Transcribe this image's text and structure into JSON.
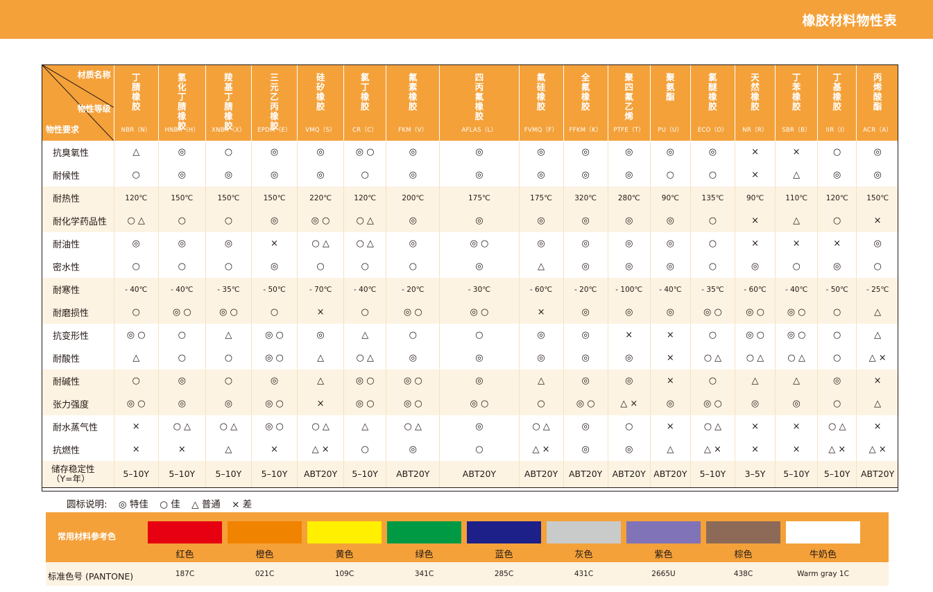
{
  "header": {
    "title": "橡胶材料物性表"
  },
  "table": {
    "corner": {
      "top": "材质名称",
      "middle": "物性等级",
      "bottom": "物性要求"
    },
    "materials": [
      {
        "name": "丁腈橡胶",
        "code": "NBR（N）"
      },
      {
        "name": "氢化丁腈橡胶",
        "code": "HNBR（H）"
      },
      {
        "name": "羧基丁腈橡胶",
        "code": "XNBR（X）"
      },
      {
        "name": "三元乙丙橡胶",
        "code": "EPDM（E）"
      },
      {
        "name": "硅矽橡胶",
        "code": "VMQ（S）"
      },
      {
        "name": "氯丁橡胶",
        "code": "CR（C）"
      },
      {
        "name": "氟素橡胶",
        "code": "FKM（V）"
      },
      {
        "name": "四丙氟橡胶",
        "code": "AFLAS（L）"
      },
      {
        "name": "氟硅橡胶",
        "code": "FVMQ（F）"
      },
      {
        "name": "全氟橡胶",
        "code": "FFKM（K）"
      },
      {
        "name": "聚四氟乙烯",
        "code": "PTFE（T）"
      },
      {
        "name": "聚氨酯",
        "code": "PU（U）"
      },
      {
        "name": "氯醚橡胶",
        "code": "ECO（O）"
      },
      {
        "name": "天然橡胶",
        "code": "NR（R）"
      },
      {
        "name": "丁苯橡胶",
        "code": "SBR（B）"
      },
      {
        "name": "丁基橡胶",
        "code": "IIR（I）"
      },
      {
        "name": "丙烯酸酯",
        "code": "ACR（A）"
      }
    ],
    "rows": [
      {
        "label": "抗臭氧性",
        "values": [
          "△",
          "◎",
          "○",
          "◎",
          "◎",
          "◎ ○",
          "◎",
          "◎",
          "◎",
          "◎",
          "◎",
          "◎",
          "◎",
          "×",
          "×",
          "○",
          "◎"
        ]
      },
      {
        "label": "耐候性",
        "values": [
          "○",
          "◎",
          "◎",
          "◎",
          "◎",
          "○",
          "◎",
          "◎",
          "◎",
          "◎",
          "◎",
          "○",
          "○",
          "×",
          "△",
          "◎",
          "◎"
        ]
      },
      {
        "label": "耐热性",
        "values": [
          "120℃",
          "150℃",
          "150℃",
          "150℃",
          "220℃",
          "120℃",
          "200℃",
          "175℃",
          "175℃",
          "320℃",
          "280℃",
          "90℃",
          "135℃",
          "90℃",
          "110℃",
          "120℃",
          "150℃"
        ]
      },
      {
        "label": "耐化学药品性",
        "values": [
          "○ △",
          "○",
          "○",
          "◎",
          "◎ ○",
          "○ △",
          "◎",
          "◎",
          "◎",
          "◎",
          "◎",
          "◎",
          "○",
          "×",
          "△",
          "○",
          "×"
        ]
      },
      {
        "label": "耐油性",
        "values": [
          "◎",
          "◎",
          "◎",
          "×",
          "○ △",
          "○ △",
          "◎",
          "◎ ○",
          "◎",
          "◎",
          "◎",
          "◎",
          "○",
          "×",
          "×",
          "×",
          "◎"
        ]
      },
      {
        "label": "密水性",
        "values": [
          "○",
          "○",
          "○",
          "◎",
          "○",
          "○",
          "○",
          "◎",
          "△",
          "◎",
          "◎",
          "◎",
          "○",
          "◎",
          "○",
          "◎",
          "○"
        ]
      },
      {
        "label": "耐寒性",
        "values": [
          "- 40℃",
          "- 40℃",
          "- 35℃",
          "- 50℃",
          "- 70℃",
          "- 40℃",
          "- 20℃",
          "- 30℃",
          "- 60℃",
          "- 20℃",
          "- 100℃",
          "- 40℃",
          "- 35℃",
          "- 60℃",
          "- 40℃",
          "- 50℃",
          "- 25℃"
        ]
      },
      {
        "label": "耐磨损性",
        "values": [
          "○",
          "◎ ○",
          "◎ ○",
          "○",
          "×",
          "○",
          "◎ ○",
          "◎ ○",
          "×",
          "◎",
          "◎",
          "◎",
          "◎ ○",
          "◎ ○",
          "◎ ○",
          "○",
          "△"
        ]
      },
      {
        "label": "抗变形性",
        "values": [
          "◎ ○",
          "○",
          "△",
          "◎ ○",
          "◎",
          "△",
          "○",
          "○",
          "◎",
          "◎",
          "×",
          "×",
          "○",
          "◎ ○",
          "◎ ○",
          "○",
          "△"
        ]
      },
      {
        "label": "耐酸性",
        "values": [
          "△",
          "○",
          "○",
          "◎ ○",
          "△",
          "○ △",
          "◎",
          "◎",
          "◎",
          "◎",
          "◎",
          "×",
          "○ △",
          "○ △",
          "○ △",
          "○",
          "△ ×"
        ]
      },
      {
        "label": "耐碱性",
        "values": [
          "○",
          "◎",
          "○",
          "◎",
          "△",
          "◎ ○",
          "◎ ○",
          "◎",
          "△",
          "◎",
          "◎",
          "×",
          "○",
          "△",
          "△",
          "◎",
          "×"
        ]
      },
      {
        "label": "张力强度",
        "values": [
          "◎ ○",
          "◎",
          "◎",
          "◎ ○",
          "×",
          "◎ ○",
          "◎ ○",
          "◎ ○",
          "○",
          "◎ ○",
          "△ ×",
          "◎",
          "◎ ○",
          "◎",
          "◎",
          "○",
          "△"
        ]
      },
      {
        "label": "耐水蒸气性",
        "values": [
          "×",
          "○ △",
          "○ △",
          "◎ ○",
          "○ △",
          "△",
          "○ △",
          "◎",
          "○ △",
          "◎",
          "○",
          "×",
          "○ △",
          "×",
          "×",
          "○ △",
          "×"
        ]
      },
      {
        "label": "抗燃性",
        "values": [
          "×",
          "×",
          "△",
          "×",
          "△ ×",
          "○",
          "◎",
          "○",
          "△ ×",
          "◎",
          "◎",
          "△",
          "△ ×",
          "×",
          "×",
          "△ ×",
          "△ ×"
        ]
      },
      {
        "label": "储存稳定性（Y=年）",
        "values": [
          "5–10Y",
          "5–10Y",
          "5–10Y",
          "5–10Y",
          "ABT20Y",
          "5–10Y",
          "ABT20Y",
          "ABT20Y",
          "ABT20Y",
          "ABT20Y",
          "ABT20Y",
          "ABT20Y",
          "5–10Y",
          "3–5Y",
          "5–10Y",
          "5–10Y",
          "ABT20Y"
        ]
      }
    ]
  },
  "legend": {
    "title": "圆标说明:",
    "items": [
      "◎ 特佳",
      "○ 佳",
      "△ 普通",
      "× 差"
    ]
  },
  "colors": {
    "label": "常用材料参考色",
    "pantone_label": "标准色号 (PANTONE)",
    "items": [
      {
        "name": "红色",
        "pantone": "187C",
        "hex": "#e60012"
      },
      {
        "name": "橙色",
        "pantone": "021C",
        "hex": "#f08300"
      },
      {
        "name": "黄色",
        "pantone": "109C",
        "hex": "#fff000"
      },
      {
        "name": "绿色",
        "pantone": "341C",
        "hex": "#009944"
      },
      {
        "name": "蓝色",
        "pantone": "285C",
        "hex": "#1d2088"
      },
      {
        "name": "灰色",
        "pantone": "431C",
        "hex": "#c9caca"
      },
      {
        "name": "紫色",
        "pantone": "2665U",
        "hex": "#8073b7"
      },
      {
        "name": "棕色",
        "pantone": "438C",
        "hex": "#8c6a57"
      },
      {
        "name": "牛奶色",
        "pantone": "Warm gray 1C",
        "hex": "#ffffff"
      }
    ]
  }
}
